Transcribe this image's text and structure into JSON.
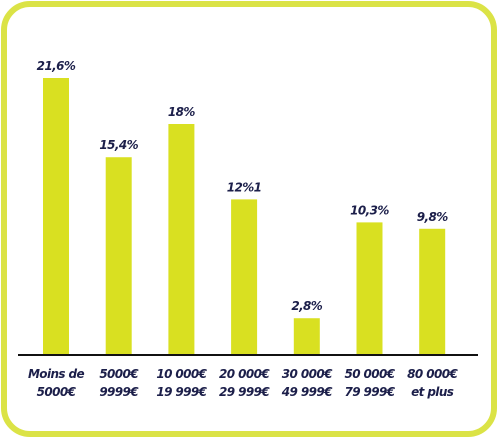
{
  "chart_data": {
    "type": "bar",
    "categories": [
      [
        "Moins de",
        "5000€"
      ],
      [
        "5000€",
        "9999€"
      ],
      [
        "10 000€",
        "19 999€"
      ],
      [
        "20 000€",
        "29 999€"
      ],
      [
        "30 000€",
        "49 999€"
      ],
      [
        "50 000€",
        "79 999€"
      ],
      [
        "80 000€",
        "et plus"
      ]
    ],
    "values": [
      21.6,
      15.4,
      18,
      12.1,
      2.8,
      10.3,
      9.8
    ],
    "value_labels": [
      "21,6%",
      "15,4%",
      "18%",
      "12%1",
      "2,8%",
      "10,3%",
      "9,8%"
    ],
    "color": "#d9e021"
  }
}
